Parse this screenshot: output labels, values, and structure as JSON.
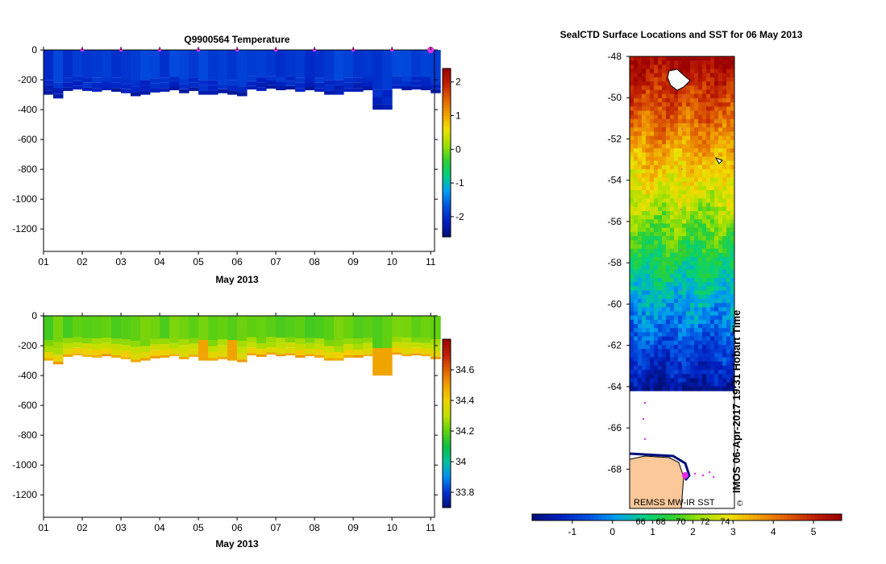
{
  "colors": {
    "background": "#ffffff",
    "land": "#fbc89a",
    "marker": "#e22ee2",
    "temperature_ramp": [
      "#00107a",
      "#0020c0",
      "#0050e0",
      "#00a0f0",
      "#00d080",
      "#30d030",
      "#a0e000",
      "#f0e000",
      "#f0a000",
      "#e06000",
      "#c02000",
      "#9a0000"
    ],
    "salinity_ramp": [
      "#00107a",
      "#0030d0",
      "#0090f0",
      "#00c0a0",
      "#10c040",
      "#60d010",
      "#c0e000",
      "#f0d000",
      "#f0a000",
      "#e06000",
      "#c02000",
      "#9a0000"
    ]
  },
  "chart_data": [
    {
      "type": "heatmap",
      "title": "Q9900564  Temperature",
      "xlabel": "May 2013",
      "ylabel": "",
      "x_ticks": [
        "01",
        "02",
        "03",
        "04",
        "05",
        "06",
        "07",
        "08",
        "09",
        "10",
        "11"
      ],
      "xlim": [
        1,
        11.1
      ],
      "y_ticks": [
        "0",
        "-200",
        "-400",
        "-600",
        "-800",
        "-1000",
        "-1200"
      ],
      "ylim": [
        -1350,
        0
      ],
      "colorbar": {
        "ticks": [
          "2",
          "1",
          "0",
          "-1",
          "-2"
        ],
        "range": [
          -2.6,
          2.4
        ]
      },
      "marker_days": [
        2,
        3,
        4,
        5,
        6,
        7,
        8,
        9,
        10,
        11
      ],
      "profile_depths": [
        {
          "day": 1.0,
          "depth": 300
        },
        {
          "day": 1.25,
          "depth": 325
        },
        {
          "day": 1.5,
          "depth": 275
        },
        {
          "day": 1.75,
          "depth": 265
        },
        {
          "day": 2.0,
          "depth": 275
        },
        {
          "day": 2.25,
          "depth": 280
        },
        {
          "day": 2.5,
          "depth": 270
        },
        {
          "day": 2.75,
          "depth": 280
        },
        {
          "day": 3.0,
          "depth": 290
        },
        {
          "day": 3.25,
          "depth": 310
        },
        {
          "day": 3.5,
          "depth": 300
        },
        {
          "day": 3.75,
          "depth": 285
        },
        {
          "day": 4.0,
          "depth": 280
        },
        {
          "day": 4.25,
          "depth": 270
        },
        {
          "day": 4.5,
          "depth": 290
        },
        {
          "day": 4.75,
          "depth": 275
        },
        {
          "day": 5.0,
          "depth": 300
        },
        {
          "day": 5.25,
          "depth": 300
        },
        {
          "day": 5.5,
          "depth": 290
        },
        {
          "day": 5.75,
          "depth": 300
        },
        {
          "day": 6.0,
          "depth": 310
        },
        {
          "day": 6.25,
          "depth": 265
        },
        {
          "day": 6.5,
          "depth": 275
        },
        {
          "day": 6.75,
          "depth": 260
        },
        {
          "day": 7.0,
          "depth": 270
        },
        {
          "day": 7.25,
          "depth": 265
        },
        {
          "day": 7.5,
          "depth": 280
        },
        {
          "day": 7.75,
          "depth": 270
        },
        {
          "day": 8.0,
          "depth": 280
        },
        {
          "day": 8.25,
          "depth": 300
        },
        {
          "day": 8.5,
          "depth": 300
        },
        {
          "day": 8.75,
          "depth": 280
        },
        {
          "day": 9.0,
          "depth": 280
        },
        {
          "day": 9.25,
          "depth": 270
        },
        {
          "day": 9.5,
          "depth": 400
        },
        {
          "day": 9.75,
          "depth": 400
        },
        {
          "day": 10.0,
          "depth": 260
        },
        {
          "day": 10.25,
          "depth": 270
        },
        {
          "day": 10.5,
          "depth": 265
        },
        {
          "day": 10.75,
          "depth": 270
        },
        {
          "day": 11.0,
          "depth": 290
        }
      ],
      "value_fraction_profile": [
        0.14,
        0.12,
        0.1,
        0.07
      ]
    },
    {
      "type": "heatmap",
      "title": "",
      "xlabel": "May 2013",
      "ylabel": "",
      "x_ticks": [
        "01",
        "02",
        "03",
        "04",
        "05",
        "06",
        "07",
        "08",
        "09",
        "10",
        "11"
      ],
      "xlim": [
        1,
        11.1
      ],
      "y_ticks": [
        "0",
        "-200",
        "-400",
        "-600",
        "-800",
        "-1000",
        "-1200"
      ],
      "ylim": [
        -1350,
        0
      ],
      "colorbar": {
        "ticks": [
          "34.6",
          "34.4",
          "34.2",
          "34",
          "33.8"
        ],
        "range": [
          33.7,
          34.8
        ]
      },
      "value_fraction_profile": [
        0.45,
        0.5,
        0.55,
        0.62,
        0.72
      ]
    },
    {
      "type": "heatmap",
      "title": "SealCTD Surface Locations and SST for 06 May 2013",
      "y_ticks": [
        "-48",
        "-50",
        "-52",
        "-54",
        "-56",
        "-58",
        "-60",
        "-62",
        "-64",
        "-66",
        "-68"
      ],
      "ylim": [
        -69.9,
        -48
      ],
      "ice_edge_lat": -64.2,
      "colorbar": {
        "ticks": [
          "-1",
          "0",
          "1",
          "2",
          "3",
          "4",
          "5"
        ],
        "range": [
          -2,
          5.7
        ],
        "secondary_ticks": [
          "66",
          "68",
          "70",
          "72",
          "74"
        ],
        "secondary_positions": [
          0.7,
          1.2,
          1.7,
          2.3,
          2.8
        ]
      },
      "source_label": "REMSS MW-IR SST",
      "credit": "IMOS 06-Apr-2017 19:31 Hobart Time",
      "copyright_symbol": "©"
    }
  ]
}
